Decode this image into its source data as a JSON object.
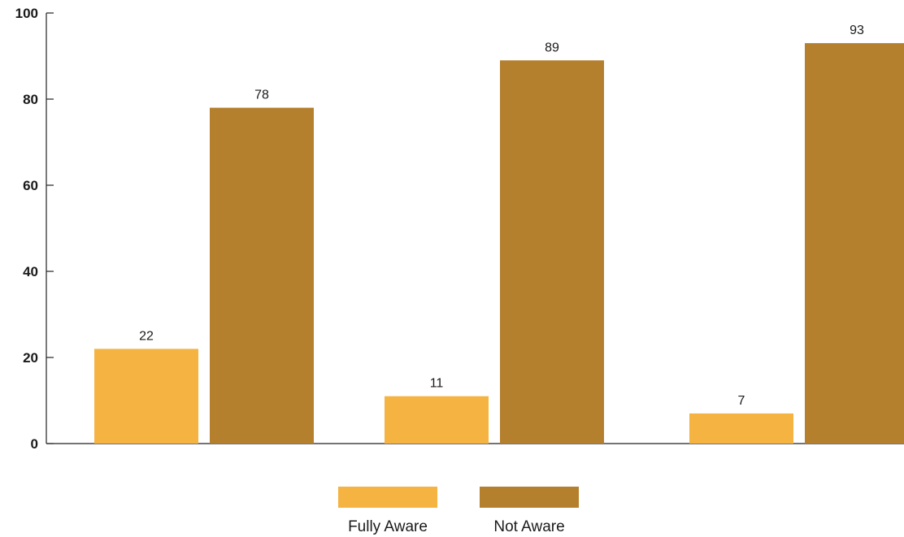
{
  "chart_data": {
    "type": "bar",
    "categories": [
      "",
      "",
      ""
    ],
    "series": [
      {
        "name": "Fully Aware",
        "values": [
          22,
          11,
          7
        ],
        "color": "#F5B342"
      },
      {
        "name": "Not Aware",
        "values": [
          78,
          89,
          93
        ],
        "color": "#B5802E"
      }
    ],
    "title": "",
    "xlabel": "",
    "ylabel": "",
    "ylim": [
      0,
      100
    ],
    "yticks": [
      "0",
      "20",
      "40",
      "60",
      "80",
      "100"
    ],
    "grid": false,
    "legend_position": "bottom-center"
  }
}
